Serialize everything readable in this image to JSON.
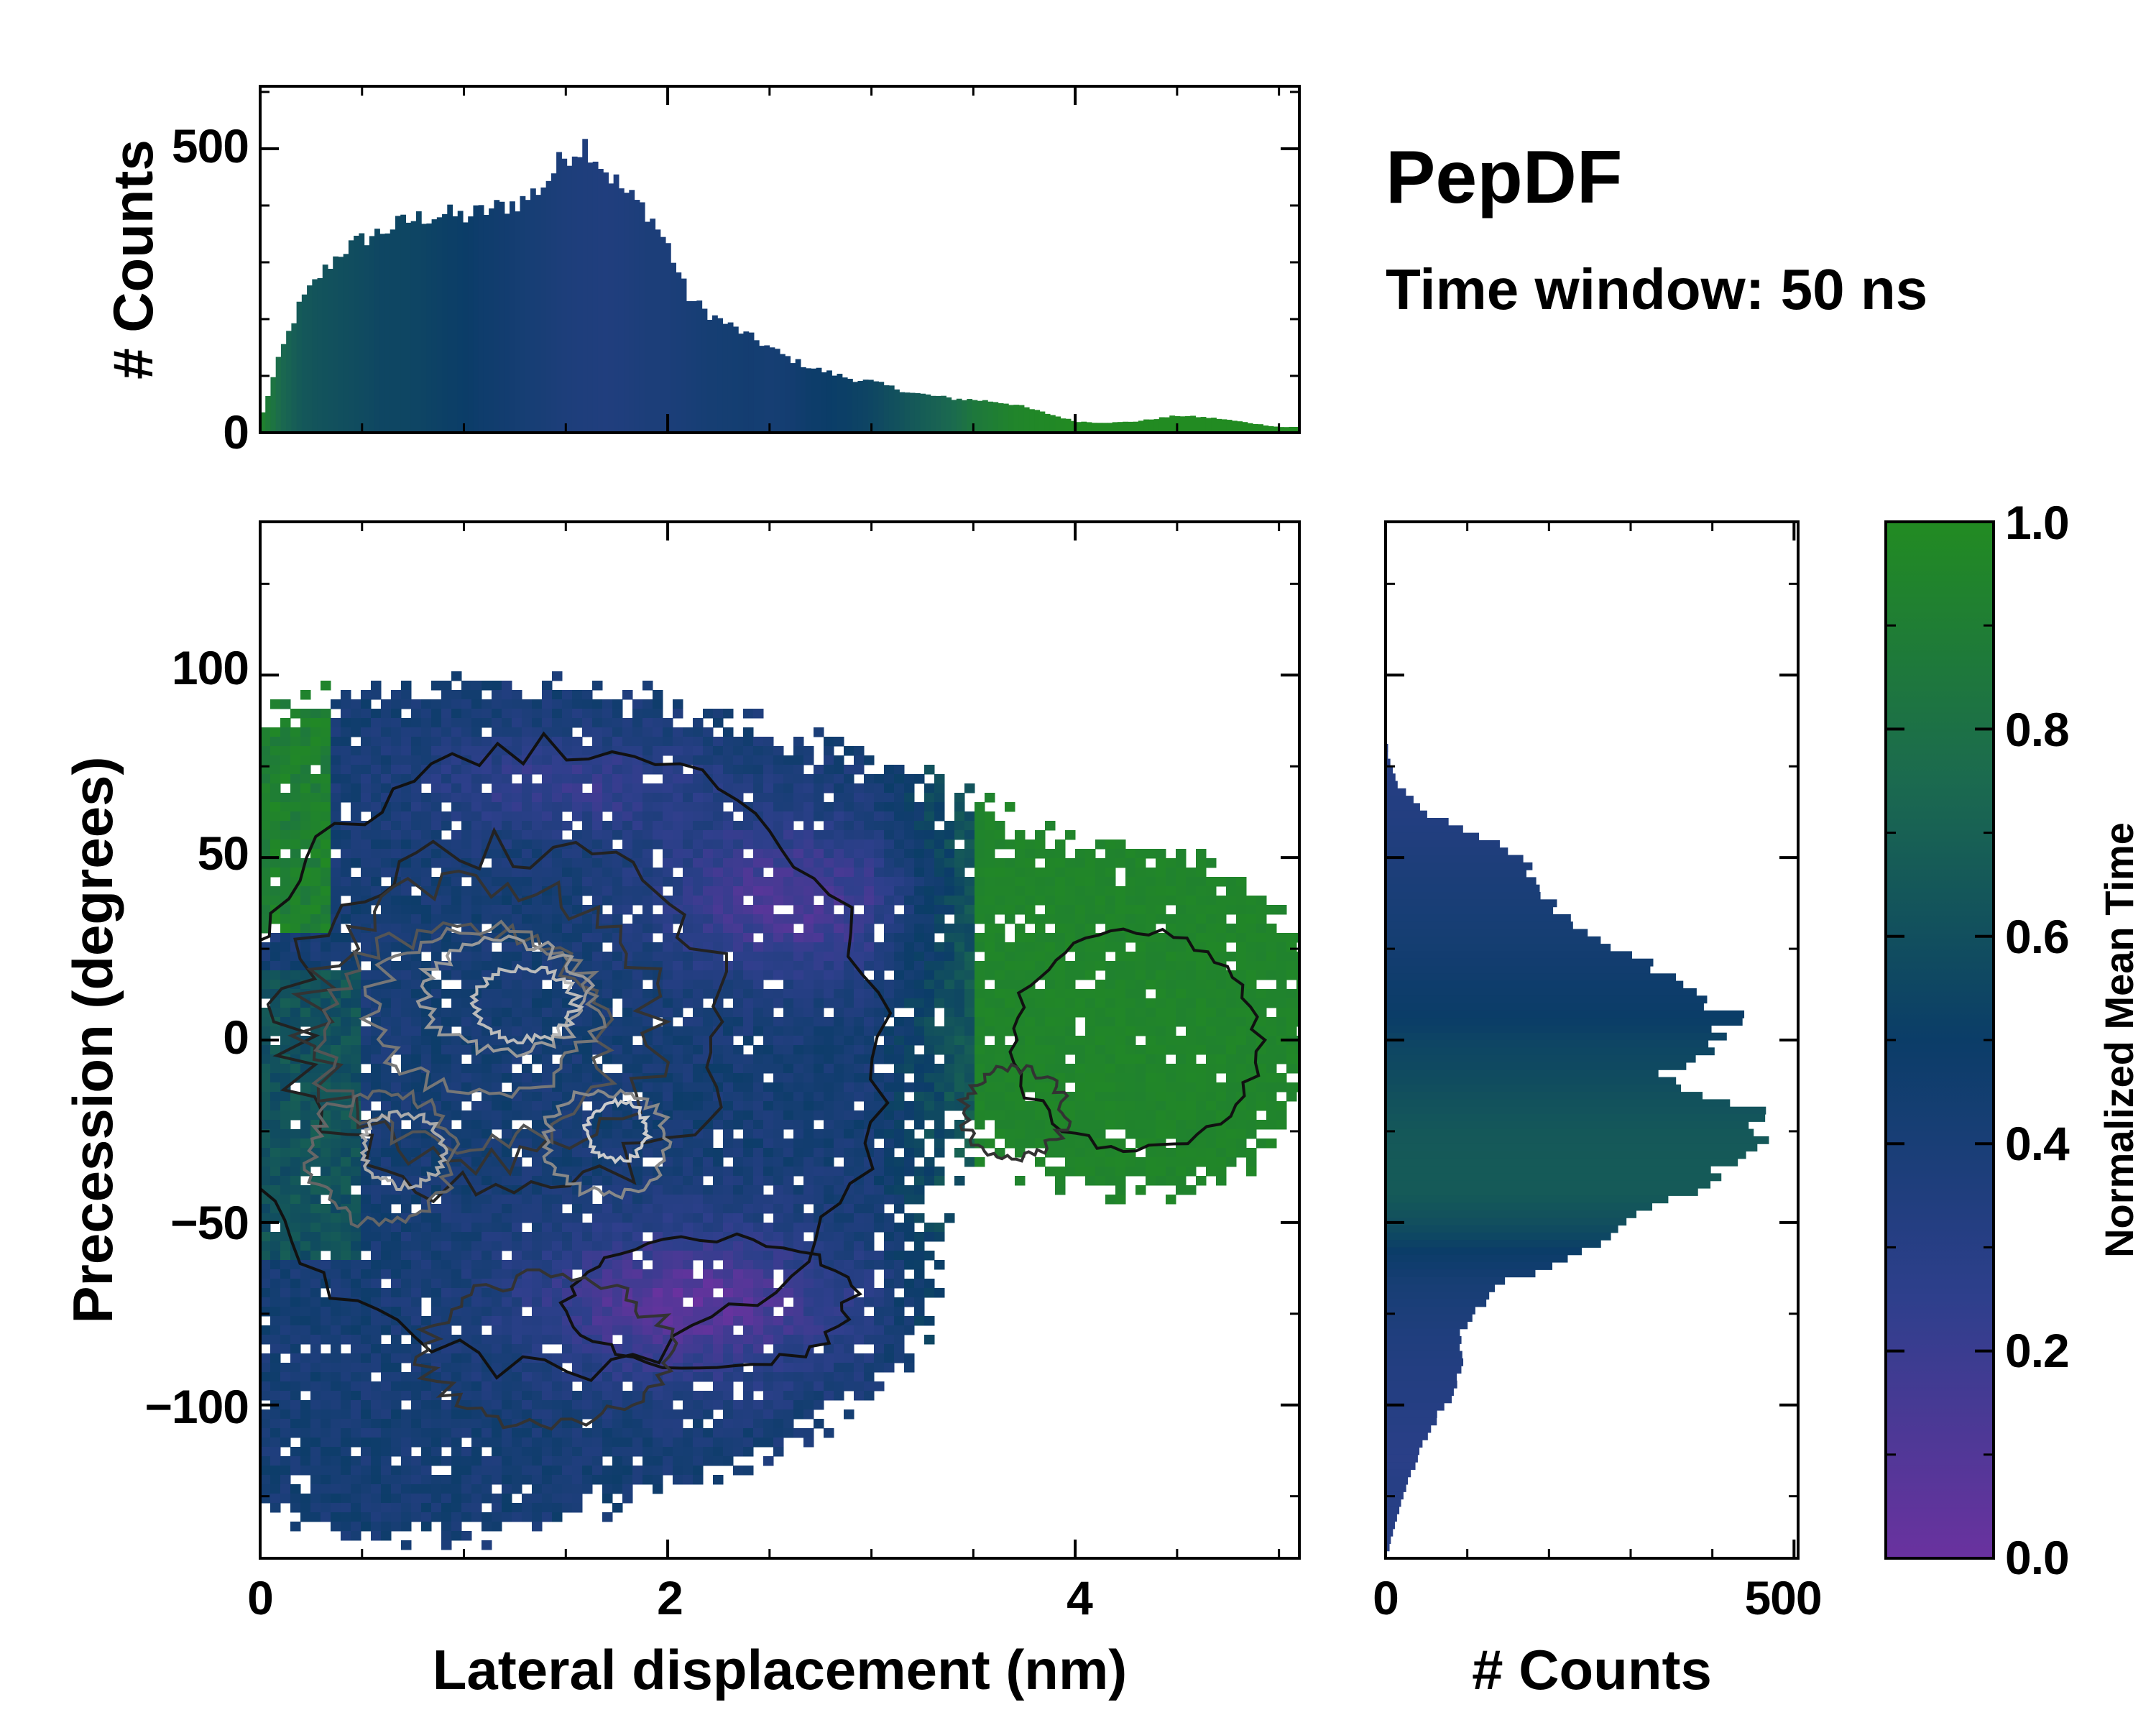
{
  "title": "PepDF",
  "subtitle": "Time window: 50 ns",
  "colors": {
    "low": "#6a329f",
    "mid": "#0b3d68",
    "high": "#228b22"
  },
  "chart_data": [
    {
      "id": "joint",
      "type": "heatmap",
      "xlabel": "Lateral displacement (nm)",
      "ylabel": "Precession (degrees)",
      "xlim": [
        0,
        5.1
      ],
      "ylim": [
        -142,
        142
      ],
      "xticks": [
        0,
        2,
        4
      ],
      "xtick_labels": [
        "0",
        "2",
        "4"
      ],
      "yticks": [
        100,
        50,
        0,
        -50,
        -100
      ],
      "ytick_labels": [
        "100",
        "50",
        "0",
        "−50",
        "−100"
      ],
      "regions": [
        {
          "name": "main-cluster",
          "x_center": 1.2,
          "y_center": -5,
          "x_spread": 0.9,
          "y_spread": 45,
          "mean_time": 0.42
        },
        {
          "name": "lower-purple",
          "x_center": 2.1,
          "y_center": -70,
          "x_spread": 0.6,
          "y_spread": 15,
          "mean_time": 0.1
        },
        {
          "name": "upper-purple",
          "x_center": 2.5,
          "y_center": 40,
          "x_spread": 0.5,
          "y_spread": 15,
          "mean_time": 0.18
        },
        {
          "name": "green-tail",
          "x_center": 4.4,
          "y_center": 0,
          "x_spread": 0.5,
          "y_spread": 25,
          "mean_time": 0.95
        }
      ]
    },
    {
      "id": "top-hist",
      "type": "bar",
      "ylabel": "# Counts",
      "xlim": [
        0,
        5.1
      ],
      "ylim": [
        0,
        610
      ],
      "yticks": [
        0,
        500
      ],
      "ytick_labels": [
        "0",
        "500"
      ],
      "x": [
        0.0,
        0.1,
        0.2,
        0.3,
        0.4,
        0.5,
        0.6,
        0.7,
        0.8,
        0.9,
        1.0,
        1.1,
        1.2,
        1.3,
        1.4,
        1.5,
        1.6,
        1.7,
        1.8,
        1.9,
        2.0,
        2.1,
        2.2,
        2.3,
        2.4,
        2.5,
        2.6,
        2.7,
        2.8,
        2.9,
        3.0,
        3.1,
        3.2,
        3.3,
        3.4,
        3.5,
        3.6,
        3.7,
        3.8,
        3.9,
        4.0,
        4.1,
        4.2,
        4.3,
        4.4,
        4.5,
        4.6,
        4.7,
        4.8,
        4.9,
        5.0
      ],
      "values": [
        20,
        140,
        230,
        280,
        320,
        340,
        355,
        370,
        380,
        385,
        380,
        390,
        400,
        410,
        440,
        490,
        510,
        460,
        420,
        390,
        330,
        240,
        210,
        190,
        170,
        150,
        130,
        115,
        105,
        95,
        90,
        80,
        70,
        65,
        60,
        58,
        55,
        50,
        40,
        30,
        20,
        18,
        18,
        20,
        25,
        30,
        28,
        25,
        20,
        15,
        10
      ],
      "mean_time": [
        0.95,
        0.75,
        0.65,
        0.62,
        0.6,
        0.58,
        0.55,
        0.55,
        0.54,
        0.52,
        0.5,
        0.47,
        0.45,
        0.42,
        0.4,
        0.37,
        0.36,
        0.35,
        0.36,
        0.38,
        0.38,
        0.4,
        0.42,
        0.43,
        0.44,
        0.42,
        0.44,
        0.48,
        0.5,
        0.52,
        0.55,
        0.6,
        0.65,
        0.7,
        0.75,
        0.85,
        0.9,
        0.95,
        0.97,
        0.98,
        1.0,
        1.0,
        1.0,
        1.0,
        1.0,
        1.0,
        1.0,
        1.0,
        1.0,
        1.0,
        1.0
      ]
    },
    {
      "id": "side-hist",
      "type": "bar",
      "orientation": "horizontal",
      "xlabel": "# Counts",
      "xlim": [
        0,
        505
      ],
      "ylim": [
        -142,
        142
      ],
      "xticks": [
        0,
        500
      ],
      "xtick_labels": [
        "0",
        "500"
      ],
      "y": [
        -138,
        -130,
        -122,
        -114,
        -106,
        -98,
        -90,
        -82,
        -74,
        -66,
        -58,
        -50,
        -42,
        -34,
        -26,
        -18,
        -10,
        -2,
        6,
        14,
        22,
        30,
        38,
        46,
        54,
        62,
        70,
        78
      ],
      "values": [
        5,
        15,
        25,
        40,
        55,
        80,
        95,
        90,
        110,
        150,
        250,
        300,
        370,
        420,
        460,
        445,
        325,
        400,
        430,
        370,
        310,
        230,
        200,
        180,
        140,
        50,
        15,
        3
      ],
      "mean_time": [
        0.3,
        0.3,
        0.3,
        0.28,
        0.3,
        0.32,
        0.33,
        0.35,
        0.38,
        0.42,
        0.5,
        0.6,
        0.66,
        0.66,
        0.65,
        0.62,
        0.58,
        0.55,
        0.5,
        0.48,
        0.45,
        0.42,
        0.4,
        0.38,
        0.35,
        0.33,
        0.32,
        0.3
      ]
    },
    {
      "id": "colorbar",
      "type": "colorbar",
      "label": "Normalized Mean Time",
      "ylim": [
        0,
        1
      ],
      "ticks": [
        0.0,
        0.2,
        0.4,
        0.6,
        0.8,
        1.0
      ],
      "tick_labels": [
        "0.0",
        "0.2",
        "0.4",
        "0.6",
        "0.8",
        "1.0"
      ]
    }
  ]
}
